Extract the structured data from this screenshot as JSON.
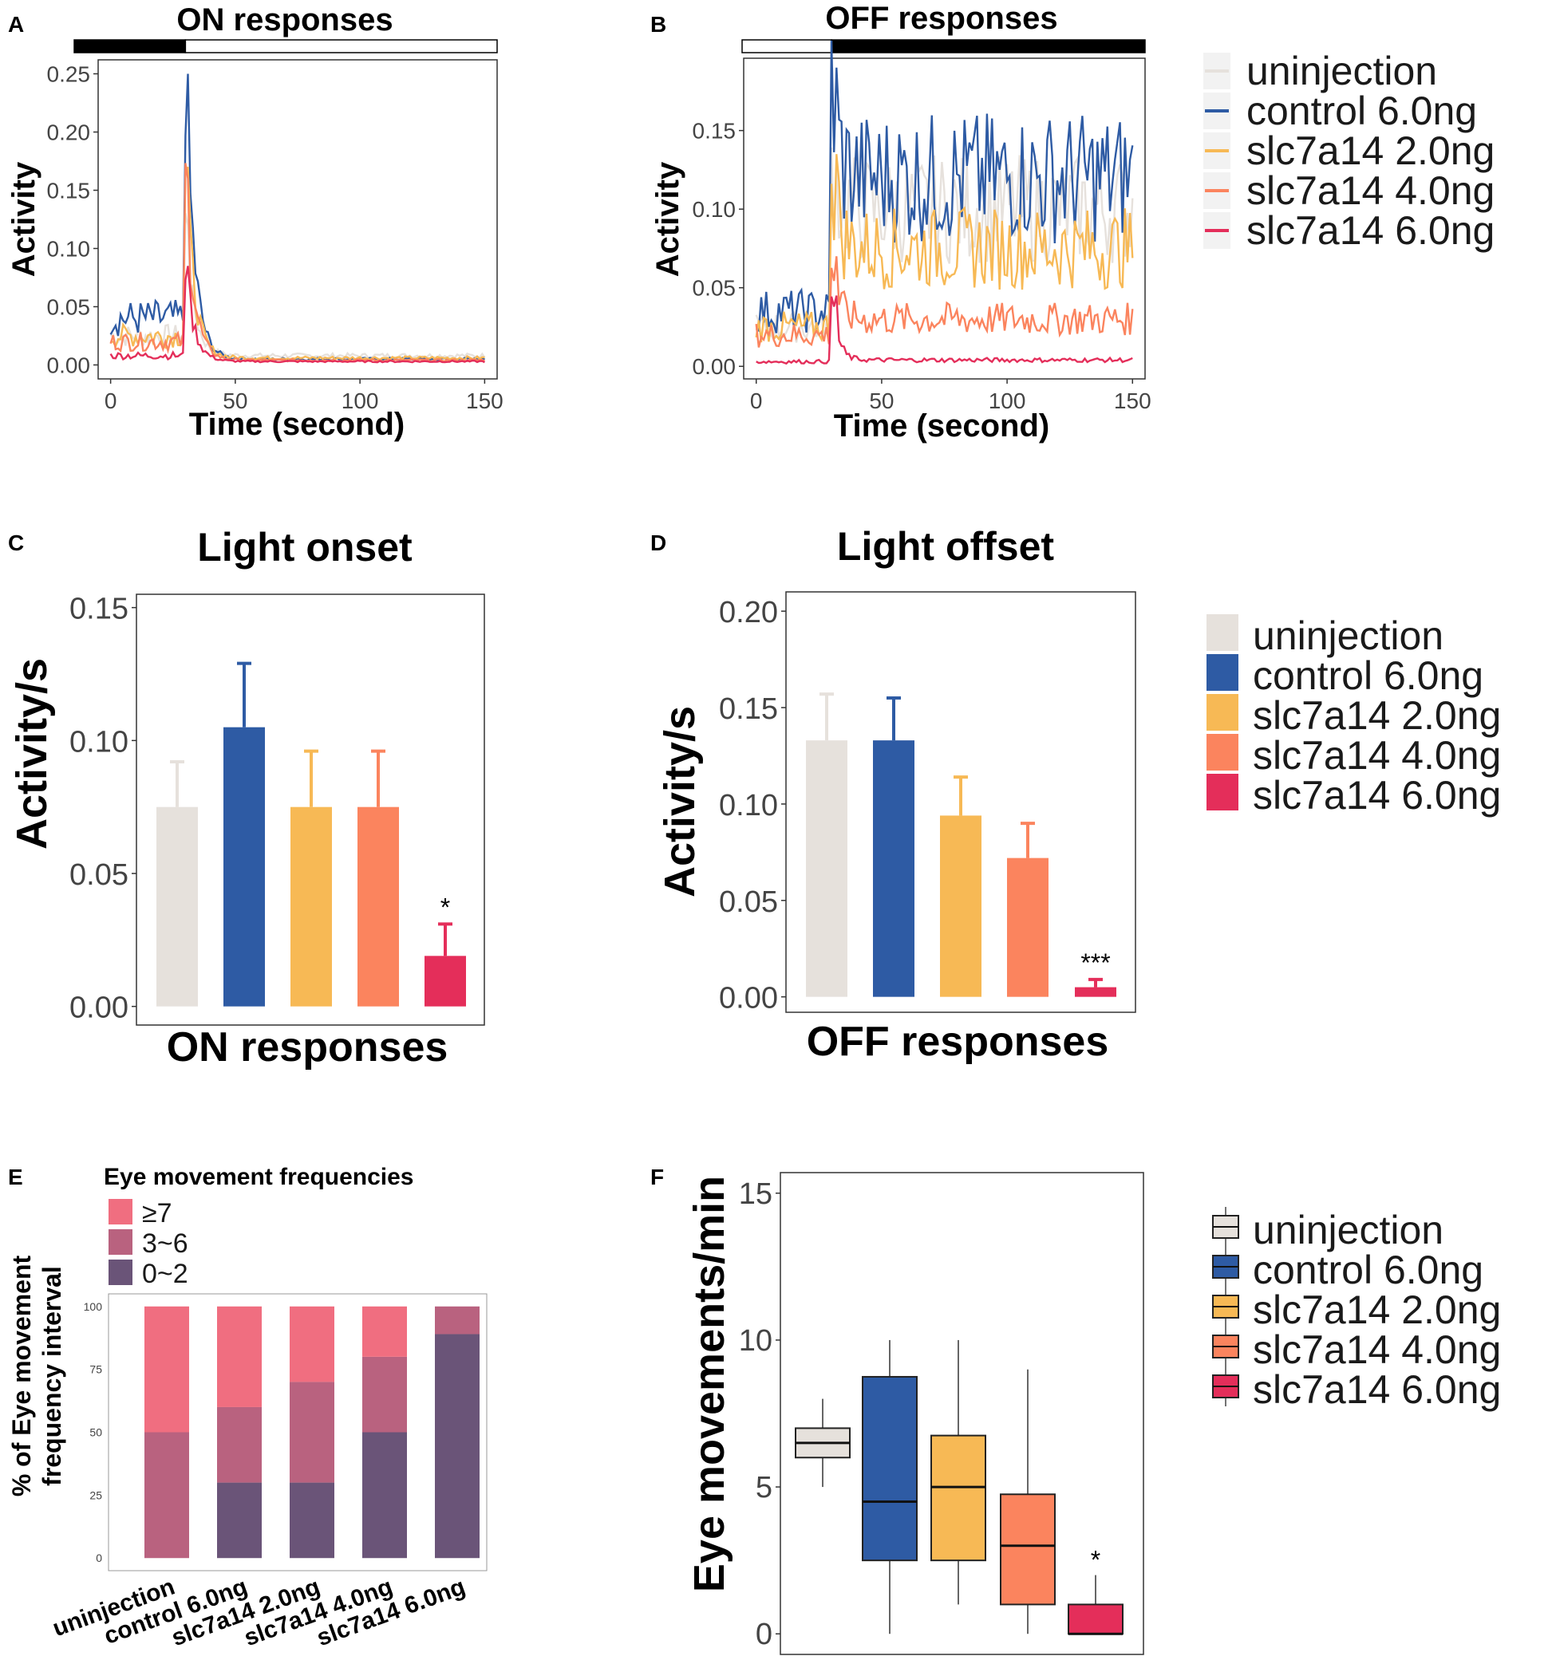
{
  "colors": {
    "uninjection": "#E6E1DC",
    "control 6.0ng": "#2E5BA4",
    "slc7a14 2.0ng": "#F7B955",
    "slc7a14 4.0ng": "#FB845E",
    "slc7a14 6.0ng": "#E42E5A",
    "freq_ge7": "#F06E80",
    "freq_3to6": "#B9627F",
    "freq_0to2": "#6A5478"
  },
  "legend": {
    "entries": [
      "uninjection",
      "control 6.0ng",
      "slc7a14 2.0ng",
      "slc7a14 4.0ng",
      "slc7a14 6.0ng"
    ]
  },
  "panels": {
    "A": "A",
    "B": "B",
    "C": "C",
    "D": "D",
    "E": "E",
    "F": "F"
  },
  "chart_data": [
    {
      "id": "A",
      "type": "line",
      "title": "ON responses",
      "xlabel": "Time (second)",
      "ylabel": "Activity",
      "xlim": [
        -5,
        155
      ],
      "ylim": [
        -0.012,
        0.262
      ],
      "xticks": [
        "0",
        "50",
        "100",
        "150"
      ],
      "yticks": [
        "0.00",
        "0.05",
        "0.10",
        "0.15",
        "0.20",
        "0.25"
      ],
      "stimulus_bar": {
        "dark_until": 30,
        "light_after": 30
      },
      "series": [
        {
          "name": "uninjection",
          "baseline": 0.025,
          "peak": 0.12,
          "post": 0.008
        },
        {
          "name": "control 6.0ng",
          "baseline": 0.04,
          "peak": 0.25,
          "post": 0.005
        },
        {
          "name": "slc7a14 2.0ng",
          "baseline": 0.025,
          "peak": 0.17,
          "post": 0.006
        },
        {
          "name": "slc7a14 4.0ng",
          "baseline": 0.02,
          "peak": 0.16,
          "post": 0.004
        },
        {
          "name": "slc7a14 6.0ng",
          "baseline": 0.008,
          "peak": 0.085,
          "post": 0.003
        }
      ]
    },
    {
      "id": "B",
      "type": "line",
      "title": "OFF responses",
      "xlabel": "Time (second)",
      "ylabel": "Activity",
      "xlim": [
        -5,
        155
      ],
      "ylim": [
        -0.008,
        0.196
      ],
      "xticks": [
        "0",
        "50",
        "100",
        "150"
      ],
      "yticks": [
        "0.00",
        "0.05",
        "0.10",
        "0.15"
      ],
      "stimulus_bar": {
        "light_until": 30,
        "dark_after": 30
      },
      "series": [
        {
          "name": "uninjection",
          "baseline": 0.025,
          "peak": 0.13,
          "post": 0.1
        },
        {
          "name": "control 6.0ng",
          "baseline": 0.035,
          "peak": 0.19,
          "post": 0.12
        },
        {
          "name": "slc7a14 2.0ng",
          "baseline": 0.025,
          "peak": 0.135,
          "post": 0.075
        },
        {
          "name": "slc7a14 4.0ng",
          "baseline": 0.02,
          "peak": 0.07,
          "post": 0.03
        },
        {
          "name": "slc7a14 6.0ng",
          "baseline": 0.003,
          "peak": 0.045,
          "post": 0.004
        }
      ]
    },
    {
      "id": "C",
      "type": "bar",
      "title": "Light onset",
      "xlabel": "ON responses",
      "ylabel": "Activity/s",
      "ylim": [
        -0.007,
        0.155
      ],
      "yticks": [
        "0.00",
        "0.05",
        "0.10",
        "0.15"
      ],
      "categories": [
        "uninjection",
        "control 6.0ng",
        "slc7a14 2.0ng",
        "slc7a14 4.0ng",
        "slc7a14 6.0ng"
      ],
      "values": [
        0.075,
        0.105,
        0.075,
        0.075,
        0.019
      ],
      "errors": [
        0.017,
        0.024,
        0.021,
        0.021,
        0.012
      ],
      "annotations": [
        "",
        "",
        "",
        "",
        "*"
      ]
    },
    {
      "id": "D",
      "type": "bar",
      "title": "Light offset",
      "xlabel": "OFF responses",
      "ylabel": "Activity/s",
      "ylim": [
        -0.008,
        0.21
      ],
      "yticks": [
        "0.00",
        "0.05",
        "0.10",
        "0.15",
        "0.20"
      ],
      "categories": [
        "uninjection",
        "control 6.0ng",
        "slc7a14 2.0ng",
        "slc7a14 4.0ng",
        "slc7a14 6.0ng"
      ],
      "values": [
        0.133,
        0.133,
        0.094,
        0.072,
        0.005
      ],
      "errors": [
        0.024,
        0.022,
        0.02,
        0.018,
        0.004
      ],
      "annotations": [
        "",
        "",
        "",
        "",
        "***"
      ]
    },
    {
      "id": "E",
      "type": "bar",
      "stacked": true,
      "legend_title": "Eye movement frequencies",
      "legend_labels": [
        "≥7",
        "3~6",
        "0~2"
      ],
      "ylabel": "% of Eye movement frequency interval",
      "ylabel_lines": [
        "% of Eye movement",
        "frequency interval"
      ],
      "ylim": [
        -5,
        105
      ],
      "yticks": [
        "0",
        "25",
        "50",
        "75",
        "100"
      ],
      "categories": [
        "uninjection",
        "control 6.0ng",
        "slc7a14 2.0ng",
        "slc7a14 4.0ng",
        "slc7a14 6.0ng"
      ],
      "series": [
        {
          "name": "0~2",
          "values": [
            0,
            30,
            30,
            50,
            89
          ]
        },
        {
          "name": "3~6",
          "values": [
            50,
            30,
            40,
            30,
            11
          ]
        },
        {
          "name": "≥7",
          "values": [
            50,
            40,
            30,
            20,
            0
          ]
        }
      ]
    },
    {
      "id": "F",
      "type": "box",
      "ylabel": "Eye movements/min",
      "ylim": [
        -0.7,
        15.7
      ],
      "yticks": [
        "0",
        "5",
        "10",
        "15"
      ],
      "categories": [
        "uninjection",
        "control 6.0ng",
        "slc7a14 2.0ng",
        "slc7a14 4.0ng",
        "slc7a14 6.0ng"
      ],
      "boxes": [
        {
          "min": 5,
          "q1": 6,
          "median": 6.5,
          "q3": 7,
          "max": 8
        },
        {
          "min": 0,
          "q1": 2.5,
          "median": 4.5,
          "q3": 8.75,
          "max": 10
        },
        {
          "min": 1,
          "q1": 2.5,
          "median": 5,
          "q3": 6.75,
          "max": 10
        },
        {
          "min": 0,
          "q1": 1,
          "median": 3,
          "q3": 4.75,
          "max": 9
        },
        {
          "min": 0,
          "q1": 0,
          "median": 0,
          "q3": 1,
          "max": 2
        }
      ],
      "annotations": [
        "",
        "",
        "",
        "",
        "*"
      ]
    }
  ]
}
